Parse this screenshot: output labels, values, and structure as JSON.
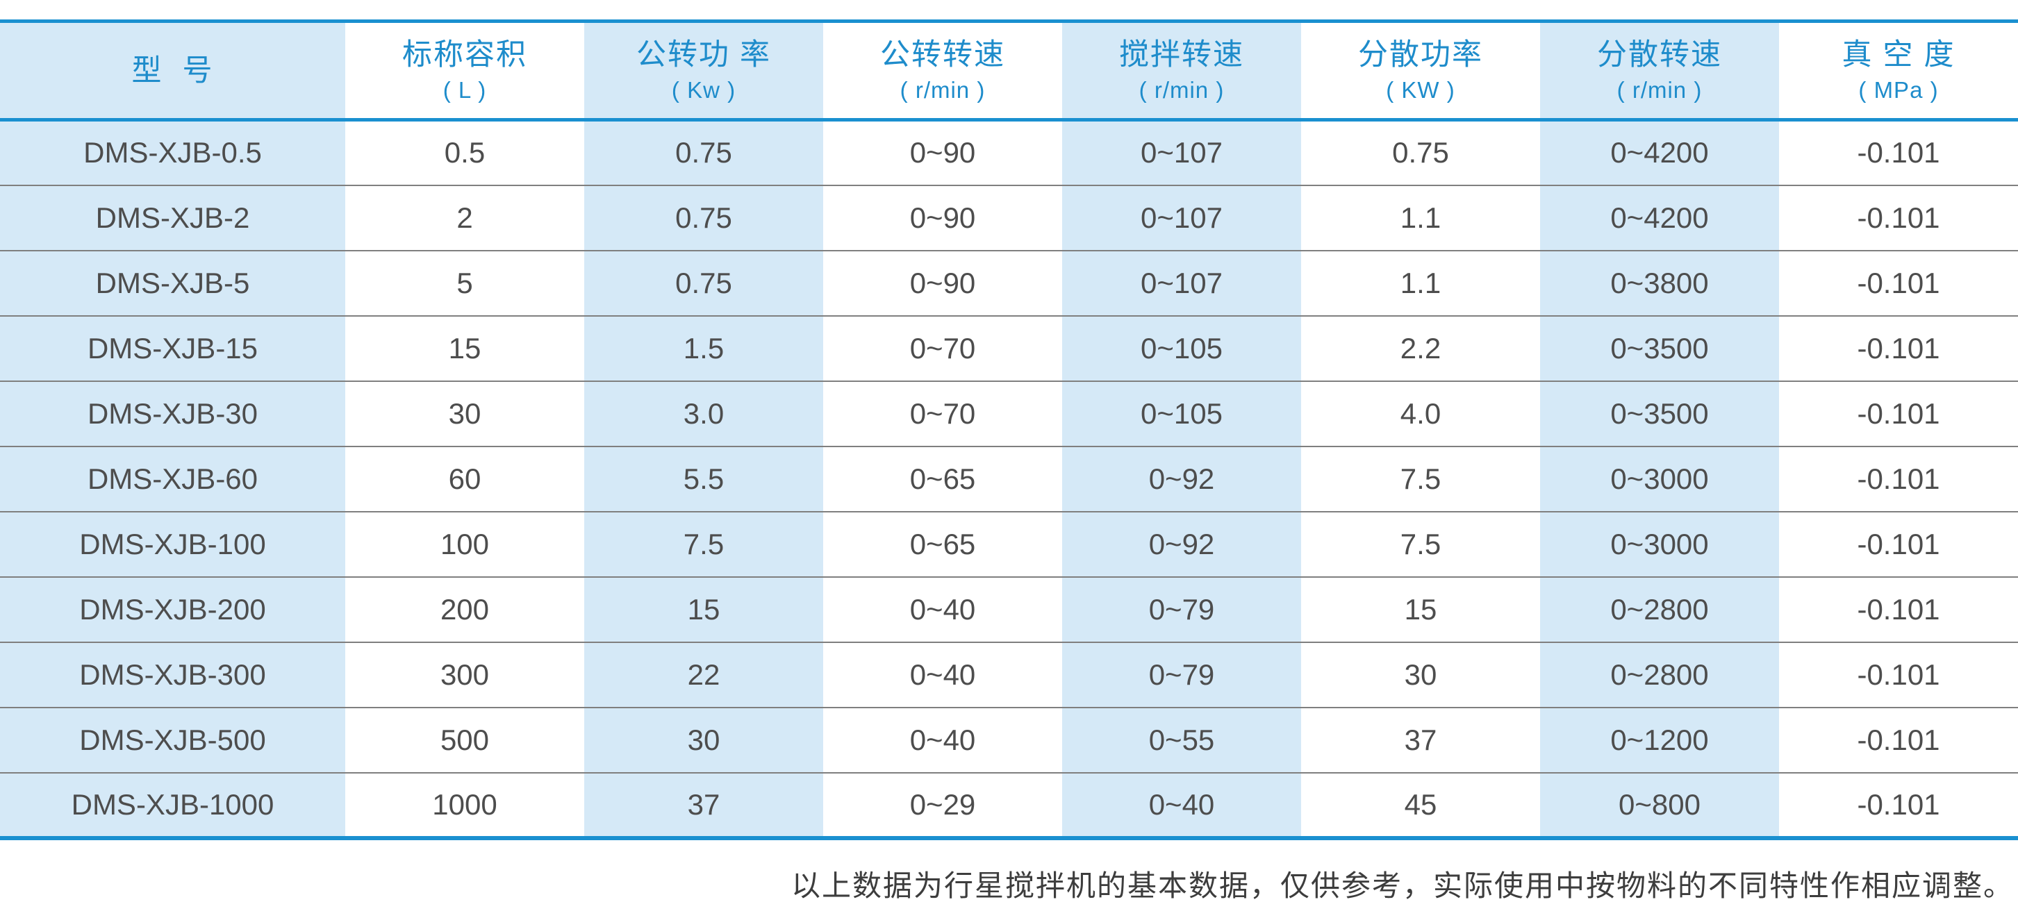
{
  "colors": {
    "accent_blue": "#1a90d0",
    "header_text_blue": "#1e8ccb",
    "stripe_light_blue": "#d5e9f7",
    "body_text": "#4d4d4d",
    "row_divider": "#7f7f7f",
    "footer_text": "#3d3d3d"
  },
  "table": {
    "columns": [
      {
        "label": "型  号",
        "unit": ""
      },
      {
        "label": "标称容积",
        "unit": "( L )"
      },
      {
        "label": "公转功 率",
        "unit": "( Kw )"
      },
      {
        "label": "公转转速",
        "unit": "( r/min )"
      },
      {
        "label": "搅拌转速",
        "unit": "( r/min )"
      },
      {
        "label": "分散功率",
        "unit": "( KW )"
      },
      {
        "label": "分散转速",
        "unit": "( r/min )"
      },
      {
        "label": "真 空 度",
        "unit": "( MPa )"
      }
    ],
    "rows": [
      [
        "DMS-XJB-0.5",
        "0.5",
        "0.75",
        "0~90",
        "0~107",
        "0.75",
        "0~4200",
        "-0.101"
      ],
      [
        "DMS-XJB-2",
        "2",
        "0.75",
        "0~90",
        "0~107",
        "1.1",
        "0~4200",
        "-0.101"
      ],
      [
        "DMS-XJB-5",
        "5",
        "0.75",
        "0~90",
        "0~107",
        "1.1",
        "0~3800",
        "-0.101"
      ],
      [
        "DMS-XJB-15",
        "15",
        "1.5",
        "0~70",
        "0~105",
        "2.2",
        "0~3500",
        "-0.101"
      ],
      [
        "DMS-XJB-30",
        "30",
        "3.0",
        "0~70",
        "0~105",
        "4.0",
        "0~3500",
        "-0.101"
      ],
      [
        "DMS-XJB-60",
        "60",
        "5.5",
        "0~65",
        "0~92",
        "7.5",
        "0~3000",
        "-0.101"
      ],
      [
        "DMS-XJB-100",
        "100",
        "7.5",
        "0~65",
        "0~92",
        "7.5",
        "0~3000",
        "-0.101"
      ],
      [
        "DMS-XJB-200",
        "200",
        "15",
        "0~40",
        "0~79",
        "15",
        "0~2800",
        "-0.101"
      ],
      [
        "DMS-XJB-300",
        "300",
        "22",
        "0~40",
        "0~79",
        "30",
        "0~2800",
        "-0.101"
      ],
      [
        "DMS-XJB-500",
        "500",
        "30",
        "0~40",
        "0~55",
        "37",
        "0~1200",
        "-0.101"
      ],
      [
        "DMS-XJB-1000",
        "1000",
        "37",
        "0~29",
        "0~40",
        "45",
        "0~800",
        "-0.101"
      ]
    ]
  },
  "footer": {
    "note": "以上数据为行星搅拌机的基本数据，仅供参考，实际使用中按物料的不同特性作相应调整。"
  }
}
